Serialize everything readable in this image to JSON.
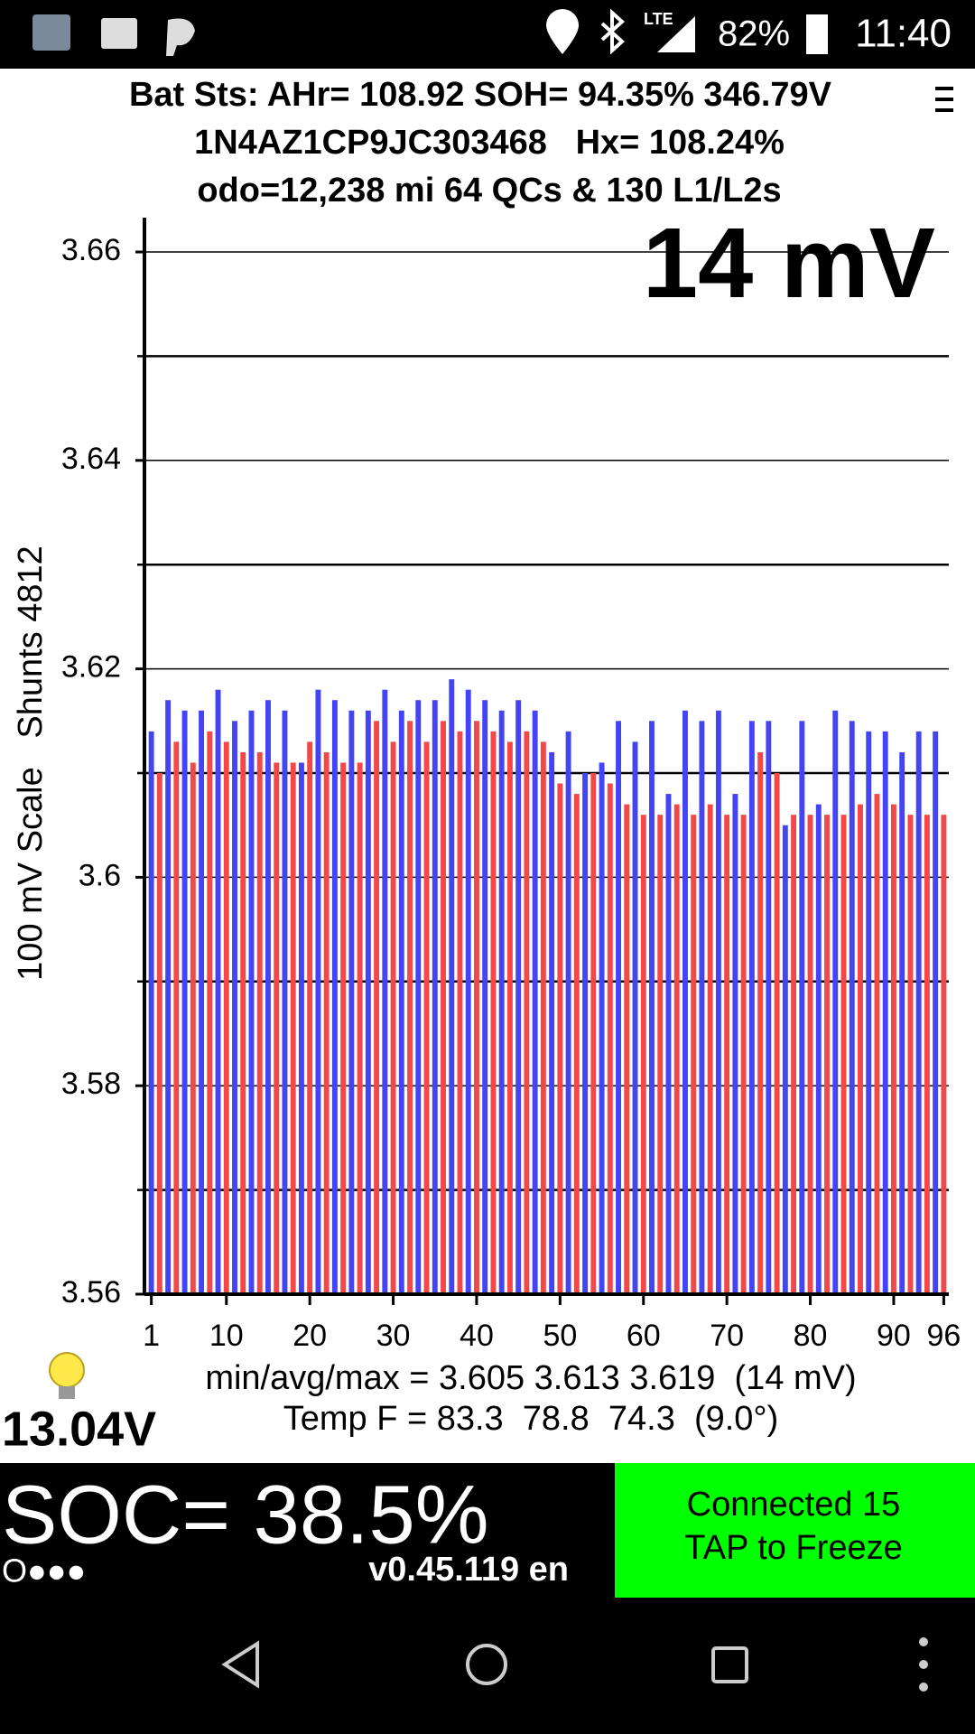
{
  "status_bar": {
    "network": "LTE",
    "battery": "82%",
    "time": "11:40"
  },
  "header": {
    "line1": "Bat Sts: AHr= 108.92 SOH= 94.35% 346.79V",
    "line2": "1N4AZ1CP9JC303468   Hx= 108.24%",
    "line3": "odo=12,238 mi 64 QCs & 130 L1/L2s"
  },
  "chart_data": {
    "type": "bar",
    "annotation": "14 mV",
    "y_label": "100 mV Scale   Shunts 4812",
    "categories": [
      1,
      null,
      null,
      null,
      null,
      null,
      null,
      null,
      null,
      10,
      null,
      null,
      null,
      null,
      null,
      null,
      null,
      null,
      null,
      20,
      null,
      null,
      null,
      null,
      null,
      null,
      null,
      null,
      null,
      30,
      null,
      null,
      null,
      null,
      null,
      null,
      null,
      null,
      null,
      40,
      null,
      null,
      null,
      null,
      null,
      null,
      null,
      null,
      null,
      50,
      null,
      null,
      null,
      null,
      null,
      null,
      null,
      null,
      null,
      60,
      null,
      null,
      null,
      null,
      null,
      null,
      null,
      null,
      null,
      70,
      null,
      null,
      null,
      null,
      null,
      null,
      null,
      null,
      null,
      80,
      null,
      null,
      null,
      null,
      null,
      null,
      null,
      null,
      null,
      90,
      null,
      null,
      null,
      null,
      null,
      96
    ],
    "values": [
      3.614,
      3.61,
      3.617,
      3.613,
      3.616,
      3.611,
      3.616,
      3.614,
      3.618,
      3.613,
      3.615,
      3.612,
      3.616,
      3.612,
      3.617,
      3.611,
      3.616,
      3.611,
      3.611,
      3.613,
      3.618,
      3.612,
      3.617,
      3.611,
      3.616,
      3.611,
      3.616,
      3.615,
      3.618,
      3.613,
      3.616,
      3.615,
      3.617,
      3.613,
      3.617,
      3.615,
      3.619,
      3.614,
      3.618,
      3.615,
      3.617,
      3.614,
      3.616,
      3.613,
      3.617,
      3.614,
      3.616,
      3.613,
      3.612,
      3.609,
      3.614,
      3.608,
      3.61,
      3.61,
      3.611,
      3.609,
      3.615,
      3.607,
      3.613,
      3.606,
      3.615,
      3.606,
      3.608,
      3.607,
      3.616,
      3.606,
      3.615,
      3.607,
      3.616,
      3.606,
      3.608,
      3.606,
      3.615,
      3.612,
      3.615,
      3.61,
      3.605,
      3.606,
      3.615,
      3.606,
      3.607,
      3.606,
      3.616,
      3.606,
      3.615,
      3.607,
      3.614,
      3.608,
      3.614,
      3.607,
      3.612,
      3.606,
      3.614,
      3.606,
      3.614,
      3.606
    ],
    "colors": [
      "#4444f4",
      "#f44848"
    ],
    "ylim": [
      3.56,
      3.66
    ],
    "yticks": [
      3.56,
      3.58,
      3.6,
      3.62,
      3.64,
      3.66
    ],
    "grid": true
  },
  "stats": {
    "range": "min/avg/max = 3.605 3.613 3.619  (14 mV)",
    "temp": "Temp F = 83.3  78.8  74.3  (9.0°)",
    "aux_voltage": "13.04V"
  },
  "footer": {
    "soc": "SOC= 38.5%",
    "dots": "O●●●",
    "version": "v0.45.119 en",
    "button_line1": "Connected 15",
    "button_line2": "TAP to Freeze"
  }
}
